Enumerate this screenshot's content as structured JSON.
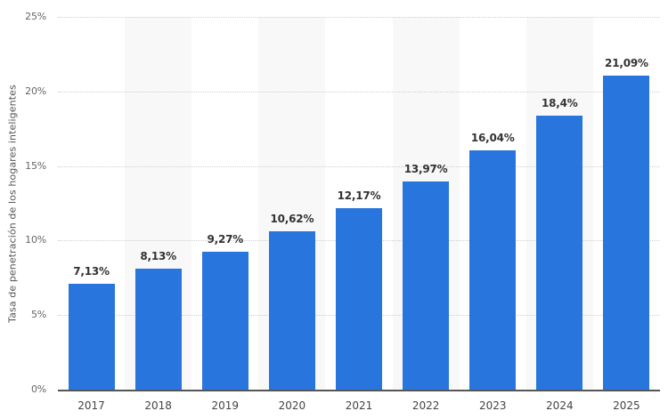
{
  "chart_data": {
    "type": "bar",
    "title": "",
    "xlabel": "",
    "ylabel": "Tasa de penetración de los hogares inteligentes",
    "categories": [
      "2017",
      "2018",
      "2019",
      "2020",
      "2021",
      "2022",
      "2023",
      "2024",
      "2025"
    ],
    "values": [
      7.13,
      8.13,
      9.27,
      10.62,
      12.17,
      13.97,
      16.04,
      18.4,
      21.09
    ],
    "value_labels": [
      "7,13%",
      "8,13%",
      "9,27%",
      "10,62%",
      "12,17%",
      "13,97%",
      "16,04%",
      "18,4%",
      "21,09%"
    ],
    "ylim": [
      0,
      25
    ],
    "yticks": [
      0,
      5,
      10,
      15,
      20,
      25
    ],
    "ytick_labels": [
      "0%",
      "5%",
      "10%",
      "15%",
      "20%",
      "25%"
    ],
    "grid": true,
    "legend": null,
    "bar_color": "#2876dd"
  }
}
